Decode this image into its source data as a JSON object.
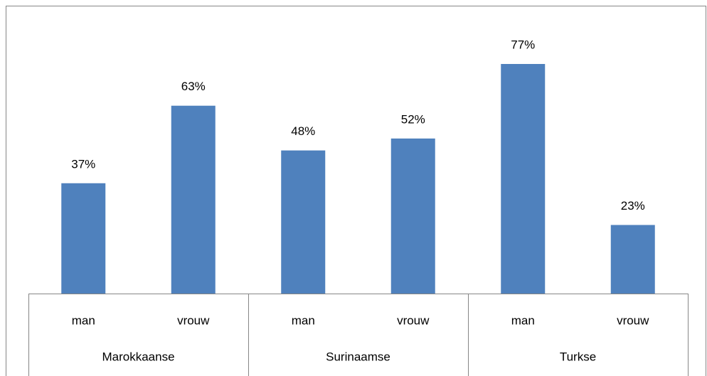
{
  "chart_data": {
    "type": "bar",
    "categories": [
      "man",
      "vrouw",
      "man",
      "vrouw",
      "man",
      "vrouw"
    ],
    "groups": [
      "Marokkaanse",
      "Surinaamse",
      "Turkse"
    ],
    "values": [
      37,
      63,
      48,
      52,
      77,
      23
    ],
    "value_labels": [
      "37%",
      "63%",
      "48%",
      "52%",
      "77%",
      "23%"
    ],
    "color": "#4f81bd"
  }
}
